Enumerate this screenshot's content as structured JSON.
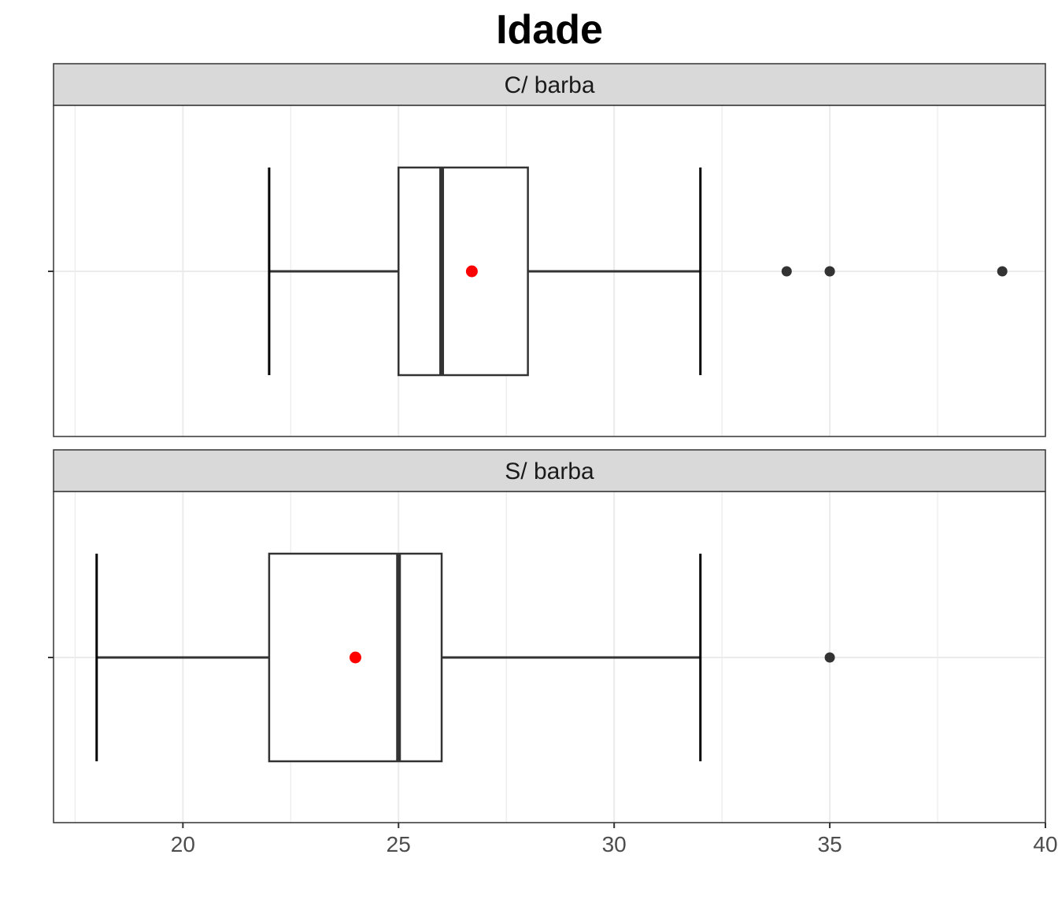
{
  "chart_data": {
    "type": "boxplot",
    "title": "Idade",
    "xlabel": "",
    "ylabel": "",
    "xlim": [
      17,
      40
    ],
    "x_ticks": [
      20,
      25,
      30,
      35,
      40
    ],
    "grid": true,
    "colors": {
      "mean_point": "#ff0000",
      "outlier_point": "#333333",
      "box_stroke": "#333333",
      "strip_fill": "#d9d9d9",
      "grid": "#ebebeb"
    },
    "panels": [
      {
        "label": "C/ barba",
        "whisker_low": 22,
        "q1": 25,
        "median": 26,
        "q3": 28,
        "whisker_high": 32,
        "mean": 26.7,
        "outliers": [
          34,
          35,
          35,
          39
        ]
      },
      {
        "label": "S/ barba",
        "whisker_low": 18,
        "q1": 22,
        "median": 25,
        "q3": 26,
        "whisker_high": 32,
        "mean": 24,
        "outliers": [
          35
        ]
      }
    ]
  }
}
